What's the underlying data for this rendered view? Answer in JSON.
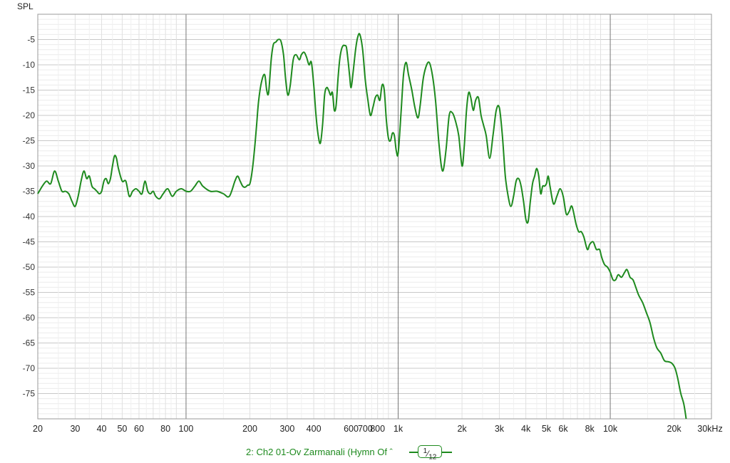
{
  "chart_data": {
    "type": "line",
    "title": "",
    "ylabel": "SPL",
    "xlabel": "",
    "x_scale": "log",
    "xlim": [
      20,
      30000
    ],
    "ylim": [
      -80,
      0
    ],
    "grid": true,
    "xticks": [
      {
        "value": 20,
        "label": "20"
      },
      {
        "value": 30,
        "label": "30"
      },
      {
        "value": 40,
        "label": "40"
      },
      {
        "value": 50,
        "label": "50"
      },
      {
        "value": 60,
        "label": "60"
      },
      {
        "value": 80,
        "label": "80"
      },
      {
        "value": 100,
        "label": "100"
      },
      {
        "value": 200,
        "label": "200"
      },
      {
        "value": 300,
        "label": "300"
      },
      {
        "value": 400,
        "label": "400"
      },
      {
        "value": 600,
        "label": "600"
      },
      {
        "value": 700,
        "label": "700"
      },
      {
        "value": 800,
        "label": "800"
      },
      {
        "value": 1000,
        "label": "1k"
      },
      {
        "value": 2000,
        "label": "2k"
      },
      {
        "value": 3000,
        "label": "3k"
      },
      {
        "value": 4000,
        "label": "4k"
      },
      {
        "value": 5000,
        "label": "5k"
      },
      {
        "value": 6000,
        "label": "6k"
      },
      {
        "value": 8000,
        "label": "8k"
      },
      {
        "value": 10000,
        "label": "10k"
      },
      {
        "value": 20000,
        "label": "20k"
      },
      {
        "value": 30000,
        "label": "30kHz"
      }
    ],
    "yticks": [
      -5,
      -10,
      -15,
      -20,
      -25,
      -30,
      -35,
      -40,
      -45,
      -50,
      -55,
      -60,
      -65,
      -70,
      -75
    ],
    "series": [
      {
        "name": "2: Ch2 01-Ov Zarmanali (Hymn Of ˆ",
        "color": "#1e8a1e",
        "smoothing": "1/12",
        "points": [
          [
            20,
            -35.5
          ],
          [
            21,
            -34
          ],
          [
            22,
            -33
          ],
          [
            23,
            -33.5
          ],
          [
            24,
            -31
          ],
          [
            25,
            -33
          ],
          [
            26,
            -35
          ],
          [
            27,
            -35
          ],
          [
            28,
            -35.5
          ],
          [
            29,
            -37
          ],
          [
            30,
            -38
          ],
          [
            31,
            -36
          ],
          [
            32,
            -33
          ],
          [
            33,
            -31
          ],
          [
            34,
            -32.5
          ],
          [
            35,
            -32
          ],
          [
            36,
            -34
          ],
          [
            37,
            -34.5
          ],
          [
            38,
            -35
          ],
          [
            39,
            -35.5
          ],
          [
            40,
            -35
          ],
          [
            41,
            -33
          ],
          [
            42,
            -32.5
          ],
          [
            43,
            -33.5
          ],
          [
            44,
            -32.5
          ],
          [
            45,
            -30
          ],
          [
            46,
            -28
          ],
          [
            47,
            -28.5
          ],
          [
            48,
            -30.5
          ],
          [
            50,
            -33
          ],
          [
            52,
            -33
          ],
          [
            54,
            -36
          ],
          [
            56,
            -35
          ],
          [
            58,
            -34.5
          ],
          [
            60,
            -35
          ],
          [
            62,
            -35.5
          ],
          [
            64,
            -33
          ],
          [
            66,
            -35
          ],
          [
            68,
            -35.5
          ],
          [
            70,
            -35
          ],
          [
            72,
            -36
          ],
          [
            75,
            -36.5
          ],
          [
            78,
            -35.5
          ],
          [
            82,
            -34.5
          ],
          [
            86,
            -36
          ],
          [
            90,
            -35
          ],
          [
            95,
            -34.5
          ],
          [
            100,
            -35
          ],
          [
            105,
            -35
          ],
          [
            110,
            -34
          ],
          [
            115,
            -33
          ],
          [
            120,
            -34
          ],
          [
            130,
            -35
          ],
          [
            140,
            -35
          ],
          [
            150,
            -35.5
          ],
          [
            160,
            -36
          ],
          [
            170,
            -33
          ],
          [
            175,
            -32
          ],
          [
            180,
            -33
          ],
          [
            185,
            -34
          ],
          [
            190,
            -34.2
          ],
          [
            195,
            -33.8
          ],
          [
            200,
            -33.5
          ],
          [
            205,
            -31
          ],
          [
            210,
            -27
          ],
          [
            215,
            -22
          ],
          [
            220,
            -17
          ],
          [
            228,
            -13
          ],
          [
            235,
            -12
          ],
          [
            240,
            -15
          ],
          [
            245,
            -15.5
          ],
          [
            252,
            -9
          ],
          [
            258,
            -6
          ],
          [
            265,
            -5.5
          ],
          [
            272,
            -5
          ],
          [
            280,
            -5.3
          ],
          [
            288,
            -8
          ],
          [
            295,
            -13
          ],
          [
            302,
            -16
          ],
          [
            310,
            -14
          ],
          [
            320,
            -9
          ],
          [
            330,
            -8
          ],
          [
            342,
            -9
          ],
          [
            350,
            -8
          ],
          [
            360,
            -7.5
          ],
          [
            370,
            -8.5
          ],
          [
            380,
            -10
          ],
          [
            390,
            -9.5
          ],
          [
            400,
            -14
          ],
          [
            410,
            -20
          ],
          [
            420,
            -24
          ],
          [
            430,
            -25.5
          ],
          [
            440,
            -22
          ],
          [
            450,
            -16
          ],
          [
            460,
            -14.5
          ],
          [
            470,
            -15
          ],
          [
            480,
            -16
          ],
          [
            490,
            -15.5
          ],
          [
            500,
            -19
          ],
          [
            510,
            -18
          ],
          [
            520,
            -13
          ],
          [
            530,
            -9
          ],
          [
            540,
            -7
          ],
          [
            550,
            -6.2
          ],
          [
            560,
            -6.2
          ],
          [
            570,
            -6.5
          ],
          [
            580,
            -9
          ],
          [
            590,
            -12
          ],
          [
            600,
            -14.5
          ],
          [
            615,
            -11
          ],
          [
            630,
            -7
          ],
          [
            645,
            -4.5
          ],
          [
            660,
            -4
          ],
          [
            680,
            -7
          ],
          [
            700,
            -13
          ],
          [
            720,
            -17
          ],
          [
            740,
            -20
          ],
          [
            760,
            -18.5
          ],
          [
            780,
            -16.5
          ],
          [
            800,
            -16
          ],
          [
            820,
            -17
          ],
          [
            840,
            -14
          ],
          [
            860,
            -15
          ],
          [
            880,
            -21
          ],
          [
            900,
            -24.5
          ],
          [
            920,
            -25
          ],
          [
            940,
            -23.5
          ],
          [
            960,
            -24
          ],
          [
            980,
            -27
          ],
          [
            1000,
            -27.5
          ],
          [
            1030,
            -20
          ],
          [
            1060,
            -12
          ],
          [
            1090,
            -9.5
          ],
          [
            1120,
            -12
          ],
          [
            1160,
            -15
          ],
          [
            1200,
            -18.5
          ],
          [
            1240,
            -20.5
          ],
          [
            1270,
            -18
          ],
          [
            1310,
            -13
          ],
          [
            1350,
            -10.5
          ],
          [
            1400,
            -9.5
          ],
          [
            1450,
            -12
          ],
          [
            1500,
            -17
          ],
          [
            1560,
            -26
          ],
          [
            1620,
            -31
          ],
          [
            1680,
            -27
          ],
          [
            1740,
            -20
          ],
          [
            1800,
            -19.5
          ],
          [
            1860,
            -21
          ],
          [
            1930,
            -24
          ],
          [
            2000,
            -30
          ],
          [
            2050,
            -26
          ],
          [
            2100,
            -19
          ],
          [
            2150,
            -15.5
          ],
          [
            2200,
            -16.5
          ],
          [
            2260,
            -19
          ],
          [
            2320,
            -17
          ],
          [
            2390,
            -16.5
          ],
          [
            2460,
            -20
          ],
          [
            2530,
            -22
          ],
          [
            2600,
            -24
          ],
          [
            2700,
            -28.5
          ],
          [
            2800,
            -24
          ],
          [
            2900,
            -19
          ],
          [
            3000,
            -18.5
          ],
          [
            3100,
            -24
          ],
          [
            3200,
            -32
          ],
          [
            3300,
            -36
          ],
          [
            3400,
            -38
          ],
          [
            3500,
            -36
          ],
          [
            3600,
            -33
          ],
          [
            3700,
            -32.5
          ],
          [
            3800,
            -34
          ],
          [
            3900,
            -37
          ],
          [
            4000,
            -40.5
          ],
          [
            4100,
            -41
          ],
          [
            4200,
            -37
          ],
          [
            4300,
            -33.5
          ],
          [
            4400,
            -32
          ],
          [
            4500,
            -30.5
          ],
          [
            4600,
            -32
          ],
          [
            4700,
            -35.5
          ],
          [
            4800,
            -34
          ],
          [
            4900,
            -34
          ],
          [
            5000,
            -33.5
          ],
          [
            5100,
            -32
          ],
          [
            5200,
            -34
          ],
          [
            5400,
            -37.5
          ],
          [
            5600,
            -36
          ],
          [
            5800,
            -34.5
          ],
          [
            6000,
            -36
          ],
          [
            6200,
            -39.5
          ],
          [
            6400,
            -39
          ],
          [
            6600,
            -38
          ],
          [
            6900,
            -41.5
          ],
          [
            7100,
            -43
          ],
          [
            7300,
            -43
          ],
          [
            7500,
            -44
          ],
          [
            7800,
            -46.5
          ],
          [
            8000,
            -45.5
          ],
          [
            8300,
            -45
          ],
          [
            8600,
            -46.5
          ],
          [
            8900,
            -46.5
          ],
          [
            9100,
            -48
          ],
          [
            9400,
            -49.5
          ],
          [
            9700,
            -50
          ],
          [
            10000,
            -51
          ],
          [
            10300,
            -52.5
          ],
          [
            10600,
            -52.5
          ],
          [
            10900,
            -51.5
          ],
          [
            11300,
            -52
          ],
          [
            11700,
            -51
          ],
          [
            12000,
            -50.5
          ],
          [
            12400,
            -52
          ],
          [
            12800,
            -52.5
          ],
          [
            13200,
            -54
          ],
          [
            13600,
            -55.5
          ],
          [
            14200,
            -57
          ],
          [
            14800,
            -59
          ],
          [
            15400,
            -61
          ],
          [
            16000,
            -64
          ],
          [
            16600,
            -66
          ],
          [
            17300,
            -67
          ],
          [
            18000,
            -68.5
          ],
          [
            18800,
            -68.7
          ],
          [
            19500,
            -69
          ],
          [
            20200,
            -70
          ],
          [
            20800,
            -72
          ],
          [
            21500,
            -75
          ],
          [
            22200,
            -77
          ],
          [
            22800,
            -80
          ]
        ]
      }
    ]
  },
  "legend": {
    "series_label": "2: Ch2 01-Ov Zarmanali (Hymn Of ˆ",
    "smoothing_num": "1",
    "smoothing_den": "12"
  }
}
